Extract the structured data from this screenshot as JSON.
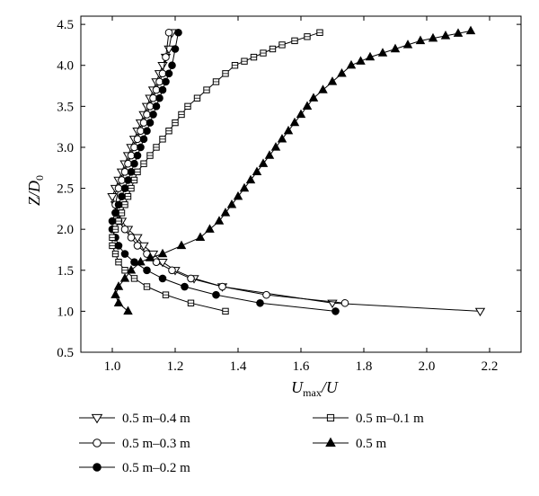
{
  "chart_data": {
    "type": "line",
    "xlabel": "U_max/U",
    "xlabel_main": "U",
    "xlabel_sub": "max",
    "xlabel_rest": "/U",
    "ylabel": "Z/D_0",
    "ylabel_main": "Z/D",
    "ylabel_sub": "0",
    "xlim": [
      0.9,
      2.3
    ],
    "ylim": [
      0.5,
      4.6
    ],
    "xticks": [
      1.0,
      1.2,
      1.4,
      1.6,
      1.8,
      2.0,
      2.2
    ],
    "xtick_labels": [
      "1.0",
      "1.2",
      "1.4",
      "1.6",
      "1.8",
      "2.0",
      "2.2"
    ],
    "yticks": [
      0.5,
      1.0,
      1.5,
      2.0,
      2.5,
      3.0,
      3.5,
      4.0,
      4.5
    ],
    "ytick_labels": [
      "0.5",
      "1.0",
      "1.5",
      "2.0",
      "2.5",
      "3.0",
      "3.5",
      "4.0",
      "4.5"
    ],
    "grid": false,
    "legend_position": "bottom",
    "series": [
      {
        "name": "0.5 m–0.4 m",
        "marker": "triangle-down-open",
        "x": [
          2.17,
          1.7,
          1.35,
          1.26,
          1.2,
          1.16,
          1.13,
          1.1,
          1.08,
          1.05,
          1.03,
          1.02,
          1.01,
          1.0,
          1.01,
          1.02,
          1.03,
          1.04,
          1.05,
          1.06,
          1.07,
          1.08,
          1.09,
          1.1,
          1.11,
          1.12,
          1.13,
          1.14,
          1.15,
          1.16,
          1.17,
          1.18,
          1.19
        ],
        "y": [
          1.0,
          1.1,
          1.3,
          1.4,
          1.5,
          1.6,
          1.7,
          1.8,
          1.9,
          2.0,
          2.1,
          2.2,
          2.3,
          2.4,
          2.5,
          2.6,
          2.7,
          2.8,
          2.9,
          3.0,
          3.1,
          3.2,
          3.3,
          3.4,
          3.5,
          3.6,
          3.7,
          3.8,
          3.9,
          4.0,
          4.1,
          4.2,
          4.4
        ]
      },
      {
        "name": "0.5 m–0.3 m",
        "marker": "circle-open",
        "x": [
          1.74,
          1.49,
          1.35,
          1.25,
          1.19,
          1.14,
          1.11,
          1.08,
          1.06,
          1.04,
          1.02,
          1.01,
          1.01,
          1.02,
          1.03,
          1.04,
          1.05,
          1.06,
          1.07,
          1.08,
          1.09,
          1.1,
          1.11,
          1.12,
          1.13,
          1.14,
          1.15,
          1.16,
          1.17,
          1.18
        ],
        "y": [
          1.1,
          1.2,
          1.3,
          1.4,
          1.5,
          1.6,
          1.7,
          1.8,
          1.9,
          2.0,
          2.1,
          2.2,
          2.3,
          2.5,
          2.6,
          2.7,
          2.8,
          2.9,
          3.0,
          3.1,
          3.2,
          3.3,
          3.4,
          3.5,
          3.6,
          3.7,
          3.8,
          3.9,
          4.1,
          4.4
        ]
      },
      {
        "name": "0.5 m–0.2 m",
        "marker": "circle-filled",
        "x": [
          1.71,
          1.47,
          1.33,
          1.23,
          1.16,
          1.11,
          1.07,
          1.04,
          1.02,
          1.01,
          1.0,
          1.0,
          1.01,
          1.02,
          1.03,
          1.04,
          1.05,
          1.06,
          1.07,
          1.08,
          1.09,
          1.1,
          1.11,
          1.12,
          1.13,
          1.14,
          1.15,
          1.16,
          1.17,
          1.18,
          1.19,
          1.2,
          1.21
        ],
        "y": [
          1.0,
          1.1,
          1.2,
          1.3,
          1.4,
          1.5,
          1.6,
          1.7,
          1.8,
          1.9,
          2.0,
          2.1,
          2.2,
          2.3,
          2.4,
          2.5,
          2.6,
          2.7,
          2.8,
          2.9,
          3.0,
          3.1,
          3.2,
          3.3,
          3.4,
          3.5,
          3.6,
          3.7,
          3.8,
          3.9,
          4.0,
          4.2,
          4.4
        ]
      },
      {
        "name": "0.5 m–0.1 m",
        "marker": "square-open",
        "x": [
          1.36,
          1.25,
          1.17,
          1.11,
          1.07,
          1.04,
          1.02,
          1.01,
          1.0,
          1.0,
          1.01,
          1.02,
          1.03,
          1.04,
          1.05,
          1.06,
          1.07,
          1.08,
          1.1,
          1.12,
          1.14,
          1.16,
          1.18,
          1.2,
          1.22,
          1.24,
          1.27,
          1.3,
          1.33,
          1.36,
          1.39,
          1.42,
          1.45,
          1.48,
          1.51,
          1.54,
          1.58,
          1.62,
          1.66
        ],
        "y": [
          1.0,
          1.1,
          1.2,
          1.3,
          1.4,
          1.5,
          1.6,
          1.7,
          1.8,
          1.9,
          2.0,
          2.1,
          2.2,
          2.3,
          2.4,
          2.5,
          2.6,
          2.7,
          2.8,
          2.9,
          3.0,
          3.1,
          3.2,
          3.3,
          3.4,
          3.5,
          3.6,
          3.7,
          3.8,
          3.9,
          4.0,
          4.05,
          4.1,
          4.15,
          4.2,
          4.25,
          4.3,
          4.35,
          4.4
        ]
      },
      {
        "name": "0.5 m",
        "marker": "triangle-up-filled",
        "x": [
          1.05,
          1.02,
          1.01,
          1.02,
          1.04,
          1.06,
          1.09,
          1.12,
          1.16,
          1.22,
          1.28,
          1.31,
          1.34,
          1.36,
          1.38,
          1.4,
          1.42,
          1.44,
          1.46,
          1.48,
          1.5,
          1.52,
          1.54,
          1.56,
          1.58,
          1.6,
          1.62,
          1.64,
          1.67,
          1.7,
          1.73,
          1.76,
          1.79,
          1.82,
          1.86,
          1.9,
          1.94,
          1.98,
          2.02,
          2.06,
          2.1,
          2.14
        ],
        "y": [
          1.0,
          1.1,
          1.2,
          1.3,
          1.4,
          1.5,
          1.6,
          1.65,
          1.7,
          1.8,
          1.9,
          2.0,
          2.1,
          2.2,
          2.3,
          2.4,
          2.5,
          2.6,
          2.7,
          2.8,
          2.9,
          3.0,
          3.1,
          3.2,
          3.3,
          3.4,
          3.5,
          3.6,
          3.7,
          3.8,
          3.9,
          4.0,
          4.05,
          4.1,
          4.15,
          4.2,
          4.25,
          4.3,
          4.33,
          4.36,
          4.39,
          4.42
        ]
      }
    ]
  }
}
